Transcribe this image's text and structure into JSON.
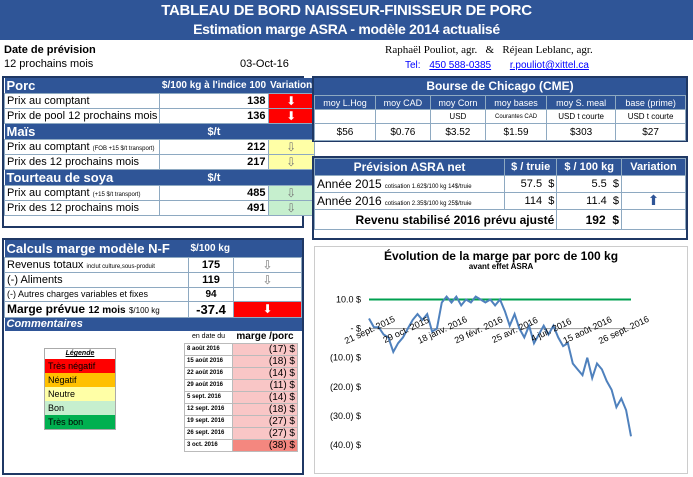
{
  "banner": {
    "title": "TABLEAU DE BORD NAISSEUR-FINISSEUR DE PORC",
    "subtitle": "Estimation marge ASRA - modèle 2014 actualisé"
  },
  "info": {
    "date_label": "Date de prévision",
    "horizon": "12 prochains mois",
    "date": "03-Oct-16",
    "authors": "Raphaël Pouliot, agr.   &   Réjean Leblanc, agr.",
    "tel_label": "Tel:",
    "tel": "450 588-0385",
    "email": "r.pouliot@xittel.ca"
  },
  "porc": {
    "title": "Porc",
    "unit": "$/100 kg à l'indice 100",
    "variation": "Variation",
    "rows": [
      {
        "label": "Prix au comptant",
        "value": "138",
        "arrow": "⬇",
        "color": "red"
      },
      {
        "label": "Prix de pool 12 prochains mois",
        "value": "136",
        "arrow": "⬇",
        "color": "red"
      }
    ]
  },
  "mais": {
    "title": "Maïs",
    "unit": "$/t",
    "rows": [
      {
        "label": "Prix au comptant",
        "note": "(FOB +15 $/t transport)",
        "value": "212",
        "arrow": "⇩",
        "color": "yellow"
      },
      {
        "label": "Prix des 12 prochains mois",
        "note": "",
        "value": "217",
        "arrow": "⇩",
        "color": "yellow"
      }
    ]
  },
  "soya": {
    "title": "Tourteau de soya",
    "unit": "$/t",
    "rows": [
      {
        "label": "Prix au comptant",
        "note": "(+15 $/t transport)",
        "value": "485",
        "arrow": "⇩",
        "color": "lgreen"
      },
      {
        "label": "Prix des 12 prochains mois",
        "note": "",
        "value": "491",
        "arrow": "⇩",
        "color": "lgreen"
      }
    ]
  },
  "calculs": {
    "title": "Calculs marge  modèle N-F",
    "unit": "$/100 kg",
    "rows": [
      {
        "label": "Revenus totaux",
        "note": "inclut culture,sous-produit",
        "value": "175",
        "arrow": "⇩"
      },
      {
        "label": "(-) Aliments",
        "note": "",
        "value": "119",
        "arrow": "⇩"
      },
      {
        "label": "(-) Autres charges variables et fixes",
        "note": "",
        "value": "94",
        "arrow": ""
      }
    ],
    "marge_label": "Marge prévue",
    "marge_horizon": "12 mois",
    "marge_unit": "$/100 kg",
    "marge_value": "-37.4",
    "marge_arrow": "⬇"
  },
  "commentaires": {
    "title": "Commentaires",
    "col_date": "en date du",
    "col_marge": "marge /porc",
    "rows": [
      {
        "date": "8 août 2016",
        "value": "(17) $"
      },
      {
        "date": "15 août 2016",
        "value": "(18) $"
      },
      {
        "date": "22 août 2016",
        "value": "(14) $"
      },
      {
        "date": "29 août 2016",
        "value": "(11) $"
      },
      {
        "date": "5 sept. 2016",
        "value": "(14) $"
      },
      {
        "date": "12 sept. 2016",
        "value": "(18) $"
      },
      {
        "date": "19 sept. 2016",
        "value": "(27) $"
      },
      {
        "date": "26 sept. 2016",
        "value": "(27) $"
      },
      {
        "date": "3 oct. 2016",
        "value": "(38) $"
      }
    ]
  },
  "legende": {
    "title": "Légende",
    "items": [
      {
        "label": "Très négatif",
        "color": "#ff0000"
      },
      {
        "label": "Négatif",
        "color": "#ffc000"
      },
      {
        "label": "Neutre",
        "color": "#ffffa6"
      },
      {
        "label": "Bon",
        "color": "#c6efce"
      },
      {
        "label": "Très bon",
        "color": "#00b050"
      }
    ]
  },
  "bourse": {
    "title": "Bourse de Chicago (CME)",
    "cols": [
      "moy L.Hog",
      "moy CAD",
      "moy Corn",
      "moy bases",
      "moy S. meal",
      "base (prime)"
    ],
    "units": [
      "",
      "",
      "USD",
      "Courantes CAD",
      "USD t courte",
      "USD t courte"
    ],
    "values": [
      "$56",
      "$0.76",
      "$3.52",
      "$1.59",
      "$303",
      "$27"
    ]
  },
  "asra": {
    "title": "Prévision ASRA net",
    "col1": "$ / truie",
    "col2": "$ / 100 kg",
    "col3": "Variation",
    "rows": [
      {
        "label": "Année 2015",
        "note": "cotisation 1.62$/100 kg 14$/truie",
        "v1": "57.5",
        "v2": "5.5",
        "arrow": ""
      },
      {
        "label": "Année 2016",
        "note": "cotisation 2.35$/100 kg 25$/truie",
        "v1": "114",
        "v2": "11.4",
        "arrow": "⬆"
      }
    ],
    "revenu_label": "Revenu stabilisé 2016 prévu ajusté",
    "revenu_value": "192"
  },
  "chart_data": {
    "type": "line",
    "title": "Évolution de la marge par porc de 100 kg",
    "subtitle": "avant effet ASRA",
    "ylim": [
      -40,
      15
    ],
    "yticks": [
      "10.0 $",
      "-   $",
      "(10.0) $",
      "(20.0) $",
      "(30.0) $",
      "(40.0) $"
    ],
    "ytick_values": [
      10,
      0,
      -10,
      -20,
      -30,
      -40
    ],
    "xticks": [
      "21 sept. 2015",
      "29 oct. 2015",
      "18 janv. 2016",
      "29 févr. 2016",
      "25 avr. 2016",
      "4 juil. 2016",
      "15 août 2016",
      "26 sept. 2016"
    ],
    "reference_line": 10,
    "series": [
      {
        "values": [
          3.5,
          0.5,
          0.5,
          -2,
          -3,
          -8,
          -5,
          -3,
          0,
          3,
          5,
          3,
          5,
          -1,
          0,
          9,
          11,
          9,
          11,
          8,
          10,
          9,
          11,
          10,
          9,
          10,
          8,
          10,
          6,
          1,
          5,
          0,
          -3,
          1,
          -5,
          -2,
          1,
          -2,
          1,
          -3,
          -6,
          -5,
          -12,
          -14,
          -16,
          -10,
          -17,
          -12,
          -14,
          -18,
          -21,
          -27,
          -24,
          -28,
          -37
        ]
      }
    ]
  }
}
